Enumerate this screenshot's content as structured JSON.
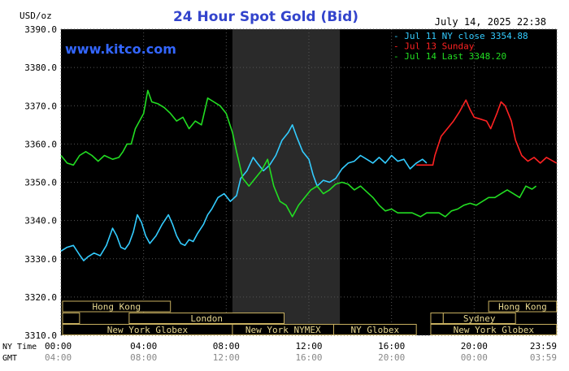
{
  "chart_data": {
    "type": "line",
    "title": "24 Hour Spot Gold (Bid)",
    "timestamp": "July 14, 2025 22:38",
    "watermark": "www.kitco.com",
    "ylabel": "USD/oz",
    "ylim": [
      3310,
      3390
    ],
    "yticks": [
      "3390.0",
      "3380.0",
      "3370.0",
      "3360.0",
      "3350.0",
      "3340.0",
      "3330.0",
      "3320.0",
      "3310.0"
    ],
    "x_rows": [
      {
        "name": "NY Time",
        "ticks": [
          "00:00",
          "04:00",
          "08:00",
          "12:00",
          "16:00",
          "20:00",
          "23:59"
        ]
      },
      {
        "name": "GMT",
        "ticks": [
          "04:00",
          "08:00",
          "12:00",
          "16:00",
          "20:00",
          "00:00",
          "03:59"
        ]
      }
    ],
    "shaded_session": {
      "from_hour": 8.3,
      "to_hour": 13.5
    },
    "legend": [
      {
        "label": "- Jul 11 NY close 3354.88",
        "color": "#33ccff"
      },
      {
        "label": "- Jul 13 Sunday",
        "color": "#ff2222"
      },
      {
        "label": "- Jul 14 Last 3348.20",
        "color": "#22dd22"
      }
    ],
    "markets": [
      {
        "name": "Hong Kong",
        "from": -0.9,
        "to": 5.3
      },
      {
        "name": "Hong Kong",
        "from": 20.7,
        "to": 23.99
      },
      {
        "name": "",
        "from": -0.9,
        "to": 0.9
      },
      {
        "name": "London",
        "from": 3.3,
        "to": 10.8
      },
      {
        "name": "Sydney",
        "from": 18.5,
        "to": 22.0
      },
      {
        "name": "",
        "from": 17.9,
        "to": 18.5
      },
      {
        "name": "New York Globex",
        "from": -0.9,
        "to": 8.3
      },
      {
        "name": "New York NYMEX",
        "from": 8.3,
        "to": 13.2
      },
      {
        "name": "NY Globex",
        "from": 13.2,
        "to": 17.2
      },
      {
        "name": "New York Globex",
        "from": 17.9,
        "to": 23.99
      }
    ],
    "series": [
      {
        "name": "Jul 11 NY close",
        "color": "#33ccff",
        "points": [
          [
            0.0,
            3332
          ],
          [
            0.3,
            3333
          ],
          [
            0.6,
            3333.5
          ],
          [
            0.9,
            3331
          ],
          [
            1.1,
            3329.5
          ],
          [
            1.3,
            3330.5
          ],
          [
            1.6,
            3331.5
          ],
          [
            1.9,
            3330.8
          ],
          [
            2.2,
            3333.5
          ],
          [
            2.5,
            3338
          ],
          [
            2.7,
            3336
          ],
          [
            2.9,
            3333
          ],
          [
            3.1,
            3332.5
          ],
          [
            3.3,
            3334
          ],
          [
            3.5,
            3337
          ],
          [
            3.7,
            3341.5
          ],
          [
            3.9,
            3339.5
          ],
          [
            4.1,
            3336
          ],
          [
            4.3,
            3334
          ],
          [
            4.6,
            3336
          ],
          [
            4.9,
            3339
          ],
          [
            5.2,
            3341.5
          ],
          [
            5.4,
            3339
          ],
          [
            5.6,
            3336
          ],
          [
            5.8,
            3334
          ],
          [
            6.0,
            3333.5
          ],
          [
            6.2,
            3335
          ],
          [
            6.4,
            3334.5
          ],
          [
            6.6,
            3336.5
          ],
          [
            6.9,
            3339
          ],
          [
            7.1,
            3341.5
          ],
          [
            7.3,
            3343
          ],
          [
            7.6,
            3346
          ],
          [
            7.9,
            3347
          ],
          [
            8.2,
            3345
          ],
          [
            8.5,
            3346.5
          ],
          [
            8.7,
            3351
          ],
          [
            9.0,
            3353
          ],
          [
            9.3,
            3356.5
          ],
          [
            9.5,
            3355
          ],
          [
            9.8,
            3353
          ],
          [
            10.1,
            3354.5
          ],
          [
            10.4,
            3357
          ],
          [
            10.7,
            3361
          ],
          [
            11.0,
            3363
          ],
          [
            11.2,
            3365
          ],
          [
            11.4,
            3362
          ],
          [
            11.7,
            3358
          ],
          [
            12.0,
            3356
          ],
          [
            12.2,
            3352
          ],
          [
            12.4,
            3349
          ],
          [
            12.7,
            3350.5
          ],
          [
            13.0,
            3350
          ],
          [
            13.3,
            3351
          ],
          [
            13.6,
            3353.5
          ],
          [
            13.9,
            3355
          ],
          [
            14.2,
            3355.5
          ],
          [
            14.5,
            3357
          ],
          [
            14.8,
            3356
          ],
          [
            15.1,
            3355
          ],
          [
            15.4,
            3356.5
          ],
          [
            15.7,
            3355
          ],
          [
            16.0,
            3357
          ],
          [
            16.3,
            3355.5
          ],
          [
            16.6,
            3356
          ],
          [
            16.9,
            3353.5
          ],
          [
            17.2,
            3355
          ],
          [
            17.5,
            3356
          ],
          [
            17.7,
            3355
          ]
        ]
      },
      {
        "name": "Jul 13 Sunday",
        "color": "#ff2222",
        "points": [
          [
            17.2,
            3354.5
          ],
          [
            18.0,
            3354.5
          ],
          [
            18.1,
            3357
          ],
          [
            18.4,
            3362
          ],
          [
            18.7,
            3364
          ],
          [
            19.0,
            3366
          ],
          [
            19.3,
            3368.5
          ],
          [
            19.6,
            3371.5
          ],
          [
            19.8,
            3369
          ],
          [
            20.0,
            3367
          ],
          [
            20.3,
            3366.5
          ],
          [
            20.6,
            3366
          ],
          [
            20.8,
            3364
          ],
          [
            21.1,
            3368
          ],
          [
            21.3,
            3371
          ],
          [
            21.5,
            3370
          ],
          [
            21.8,
            3366
          ],
          [
            22.0,
            3361
          ],
          [
            22.3,
            3357
          ],
          [
            22.6,
            3355.5
          ],
          [
            22.9,
            3356.5
          ],
          [
            23.2,
            3355
          ],
          [
            23.5,
            3356.5
          ],
          [
            23.99,
            3355
          ]
        ]
      },
      {
        "name": "Jul 14 Last",
        "color": "#22dd22",
        "points": [
          [
            0.0,
            3357
          ],
          [
            0.3,
            3355
          ],
          [
            0.6,
            3354.5
          ],
          [
            0.9,
            3357
          ],
          [
            1.2,
            3358
          ],
          [
            1.5,
            3357
          ],
          [
            1.8,
            3355.5
          ],
          [
            2.1,
            3357
          ],
          [
            2.5,
            3356
          ],
          [
            2.8,
            3356.5
          ],
          [
            3.0,
            3358
          ],
          [
            3.2,
            3360
          ],
          [
            3.4,
            3360
          ],
          [
            3.6,
            3364
          ],
          [
            3.8,
            3366
          ],
          [
            4.0,
            3368
          ],
          [
            4.2,
            3374
          ],
          [
            4.4,
            3371
          ],
          [
            4.7,
            3370.5
          ],
          [
            5.0,
            3369.5
          ],
          [
            5.3,
            3368
          ],
          [
            5.6,
            3366
          ],
          [
            5.9,
            3367
          ],
          [
            6.2,
            3364
          ],
          [
            6.5,
            3366
          ],
          [
            6.8,
            3365
          ],
          [
            7.1,
            3372
          ],
          [
            7.4,
            3371
          ],
          [
            7.7,
            3370
          ],
          [
            8.0,
            3368
          ],
          [
            8.3,
            3363
          ],
          [
            8.5,
            3358
          ],
          [
            8.8,
            3351
          ],
          [
            9.1,
            3349
          ],
          [
            9.4,
            3351
          ],
          [
            9.7,
            3353
          ],
          [
            10.0,
            3356
          ],
          [
            10.3,
            3349
          ],
          [
            10.6,
            3345
          ],
          [
            10.9,
            3344
          ],
          [
            11.2,
            3341
          ],
          [
            11.5,
            3344
          ],
          [
            11.8,
            3346
          ],
          [
            12.1,
            3348
          ],
          [
            12.4,
            3349
          ],
          [
            12.7,
            3347
          ],
          [
            13.0,
            3348
          ],
          [
            13.3,
            3349.5
          ],
          [
            13.6,
            3350
          ],
          [
            13.9,
            3349.5
          ],
          [
            14.2,
            3348
          ],
          [
            14.5,
            3349
          ],
          [
            14.8,
            3347.5
          ],
          [
            15.1,
            3346
          ],
          [
            15.4,
            3344
          ],
          [
            15.7,
            3342.5
          ],
          [
            16.0,
            3343
          ],
          [
            16.3,
            3342
          ],
          [
            16.6,
            3342
          ],
          [
            17.0,
            3342
          ],
          [
            17.4,
            3341
          ],
          [
            17.7,
            3342
          ],
          [
            18.0,
            3342
          ],
          [
            18.3,
            3342
          ],
          [
            18.6,
            3341
          ],
          [
            18.9,
            3342.5
          ],
          [
            19.2,
            3343
          ],
          [
            19.5,
            3344
          ],
          [
            19.8,
            3344.5
          ],
          [
            20.1,
            3344
          ],
          [
            20.4,
            3345
          ],
          [
            20.7,
            3346
          ],
          [
            21.0,
            3346
          ],
          [
            21.3,
            3347
          ],
          [
            21.6,
            3348
          ],
          [
            21.9,
            3347
          ],
          [
            22.2,
            3346
          ],
          [
            22.5,
            3349
          ],
          [
            22.8,
            3348.2
          ],
          [
            23.0,
            3349
          ]
        ]
      }
    ]
  }
}
